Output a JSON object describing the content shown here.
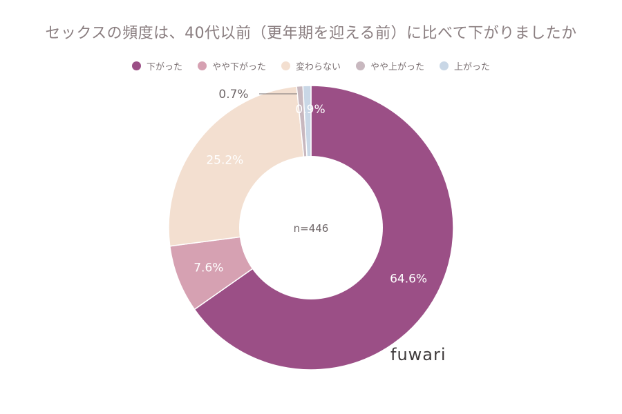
{
  "chart_data": {
    "type": "pie",
    "title": "セックスの頻度は、40代以前（更年期を迎える前）に比べて下がりましたか",
    "n_label": "n=446",
    "categories": [
      "下がった",
      "やや下がった",
      "変わらない",
      "やや上がった",
      "上がった"
    ],
    "values": [
      64.6,
      7.6,
      25.2,
      0.7,
      0.9
    ],
    "labels": [
      "64.6%",
      "7.6%",
      "25.2%",
      "0.7%",
      "0.9%"
    ],
    "colors": [
      "#9b4f86",
      "#d6a1b2",
      "#f3dfd0",
      "#c8b8bf",
      "#c9d7e6"
    ],
    "legend_position": "top"
  },
  "brand": "fuwari"
}
